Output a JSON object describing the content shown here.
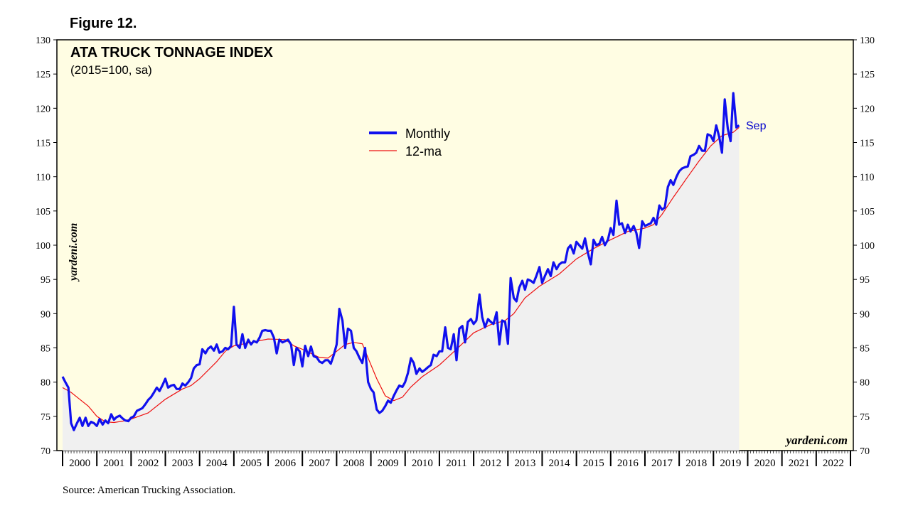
{
  "figure_label": "Figure 12.",
  "source": "Source: American Trucking Association.",
  "colors": {
    "plot_background": "#fffde3",
    "area_fill": "#f0f0f0",
    "monthly_line": "#1010ee",
    "ma_line": "#ee1111",
    "sep_label": "#0000cc"
  },
  "chart_data": {
    "type": "line",
    "title": "ATA TRUCK TONNAGE INDEX",
    "subtitle": "(2015=100, sa)",
    "watermark_side": "yardeni.com",
    "watermark_corner": "yardeni.com",
    "end_label": "Sep",
    "ylim": [
      70,
      130
    ],
    "yticks": [
      70,
      75,
      80,
      85,
      90,
      95,
      100,
      105,
      110,
      115,
      120,
      125,
      130
    ],
    "xlim": [
      2000,
      2023
    ],
    "year_labels": [
      "2000",
      "2001",
      "2002",
      "2003",
      "2004",
      "2005",
      "2006",
      "2007",
      "2008",
      "2009",
      "2010",
      "2011",
      "2012",
      "2013",
      "2014",
      "2015",
      "2016",
      "2017",
      "2018",
      "2019",
      "2020",
      "2021",
      "2022"
    ],
    "legend": {
      "position": "center-top",
      "entries": [
        "Monthly",
        "12-ma"
      ]
    },
    "series": [
      {
        "name": "Monthly",
        "points": [
          [
            2000.0,
            80.8
          ],
          [
            2000.08,
            80.0
          ],
          [
            2000.17,
            79.2
          ],
          [
            2000.25,
            74.0
          ],
          [
            2000.33,
            73.0
          ],
          [
            2000.42,
            74.0
          ],
          [
            2000.5,
            74.8
          ],
          [
            2000.58,
            73.6
          ],
          [
            2000.67,
            74.8
          ],
          [
            2000.75,
            73.6
          ],
          [
            2000.83,
            74.2
          ],
          [
            2000.92,
            74.0
          ],
          [
            2001.0,
            73.6
          ],
          [
            2001.08,
            74.6
          ],
          [
            2001.17,
            73.8
          ],
          [
            2001.25,
            74.4
          ],
          [
            2001.33,
            74.0
          ],
          [
            2001.42,
            75.3
          ],
          [
            2001.5,
            74.5
          ],
          [
            2001.58,
            74.9
          ],
          [
            2001.67,
            75.1
          ],
          [
            2001.75,
            74.7
          ],
          [
            2001.83,
            74.4
          ],
          [
            2001.92,
            74.3
          ],
          [
            2002.0,
            74.8
          ],
          [
            2002.08,
            75.0
          ],
          [
            2002.17,
            75.8
          ],
          [
            2002.25,
            76.0
          ],
          [
            2002.33,
            76.2
          ],
          [
            2002.42,
            76.8
          ],
          [
            2002.5,
            77.4
          ],
          [
            2002.58,
            77.8
          ],
          [
            2002.67,
            78.5
          ],
          [
            2002.75,
            79.2
          ],
          [
            2002.83,
            78.7
          ],
          [
            2002.92,
            79.6
          ],
          [
            2003.0,
            80.5
          ],
          [
            2003.08,
            79.2
          ],
          [
            2003.17,
            79.5
          ],
          [
            2003.25,
            79.6
          ],
          [
            2003.33,
            79.0
          ],
          [
            2003.42,
            79.0
          ],
          [
            2003.5,
            79.8
          ],
          [
            2003.58,
            79.5
          ],
          [
            2003.67,
            80.0
          ],
          [
            2003.75,
            80.6
          ],
          [
            2003.83,
            82.0
          ],
          [
            2003.92,
            82.5
          ],
          [
            2004.0,
            82.6
          ],
          [
            2004.08,
            84.8
          ],
          [
            2004.17,
            84.2
          ],
          [
            2004.25,
            84.9
          ],
          [
            2004.33,
            85.2
          ],
          [
            2004.42,
            84.6
          ],
          [
            2004.5,
            85.5
          ],
          [
            2004.58,
            84.3
          ],
          [
            2004.67,
            84.5
          ],
          [
            2004.75,
            85.0
          ],
          [
            2004.83,
            84.8
          ],
          [
            2004.92,
            85.3
          ],
          [
            2005.0,
            91.0
          ],
          [
            2005.08,
            85.5
          ],
          [
            2005.17,
            85.0
          ],
          [
            2005.25,
            87.0
          ],
          [
            2005.33,
            85.0
          ],
          [
            2005.42,
            86.2
          ],
          [
            2005.5,
            85.5
          ],
          [
            2005.58,
            86.0
          ],
          [
            2005.67,
            85.8
          ],
          [
            2005.75,
            86.5
          ],
          [
            2005.83,
            87.5
          ],
          [
            2005.92,
            87.6
          ],
          [
            2006.0,
            87.5
          ],
          [
            2006.08,
            87.5
          ],
          [
            2006.17,
            86.5
          ],
          [
            2006.25,
            84.2
          ],
          [
            2006.33,
            86.2
          ],
          [
            2006.42,
            85.8
          ],
          [
            2006.5,
            86.0
          ],
          [
            2006.58,
            86.2
          ],
          [
            2006.67,
            85.5
          ],
          [
            2006.75,
            82.5
          ],
          [
            2006.83,
            85.0
          ],
          [
            2006.92,
            84.5
          ],
          [
            2007.0,
            82.3
          ],
          [
            2007.08,
            85.3
          ],
          [
            2007.17,
            83.8
          ],
          [
            2007.25,
            85.2
          ],
          [
            2007.33,
            83.8
          ],
          [
            2007.42,
            83.6
          ],
          [
            2007.5,
            83.0
          ],
          [
            2007.58,
            82.8
          ],
          [
            2007.67,
            83.2
          ],
          [
            2007.75,
            83.2
          ],
          [
            2007.83,
            82.7
          ],
          [
            2007.92,
            84.0
          ],
          [
            2008.0,
            85.5
          ],
          [
            2008.08,
            90.7
          ],
          [
            2008.17,
            89.0
          ],
          [
            2008.25,
            85.0
          ],
          [
            2008.33,
            87.8
          ],
          [
            2008.42,
            87.5
          ],
          [
            2008.5,
            85.0
          ],
          [
            2008.58,
            84.5
          ],
          [
            2008.67,
            83.5
          ],
          [
            2008.75,
            82.8
          ],
          [
            2008.83,
            85.0
          ],
          [
            2008.92,
            80.0
          ],
          [
            2009.0,
            79.0
          ],
          [
            2009.08,
            78.5
          ],
          [
            2009.17,
            76.0
          ],
          [
            2009.25,
            75.5
          ],
          [
            2009.33,
            75.8
          ],
          [
            2009.42,
            76.5
          ],
          [
            2009.5,
            77.3
          ],
          [
            2009.58,
            77.0
          ],
          [
            2009.67,
            78.0
          ],
          [
            2009.75,
            78.8
          ],
          [
            2009.83,
            79.5
          ],
          [
            2009.92,
            79.3
          ],
          [
            2010.0,
            80.0
          ],
          [
            2010.08,
            81.3
          ],
          [
            2010.17,
            83.5
          ],
          [
            2010.25,
            82.8
          ],
          [
            2010.33,
            81.2
          ],
          [
            2010.42,
            82.0
          ],
          [
            2010.5,
            81.5
          ],
          [
            2010.58,
            81.8
          ],
          [
            2010.67,
            82.2
          ],
          [
            2010.75,
            82.5
          ],
          [
            2010.83,
            84.0
          ],
          [
            2010.92,
            83.8
          ],
          [
            2011.0,
            84.5
          ],
          [
            2011.08,
            84.5
          ],
          [
            2011.17,
            88.0
          ],
          [
            2011.25,
            85.0
          ],
          [
            2011.33,
            84.8
          ],
          [
            2011.42,
            87.0
          ],
          [
            2011.5,
            83.2
          ],
          [
            2011.58,
            87.8
          ],
          [
            2011.67,
            88.2
          ],
          [
            2011.75,
            85.8
          ],
          [
            2011.83,
            88.8
          ],
          [
            2011.92,
            89.2
          ],
          [
            2012.0,
            88.5
          ],
          [
            2012.08,
            89.0
          ],
          [
            2012.17,
            92.8
          ],
          [
            2012.25,
            89.5
          ],
          [
            2012.33,
            88.0
          ],
          [
            2012.42,
            89.2
          ],
          [
            2012.5,
            88.8
          ],
          [
            2012.58,
            88.5
          ],
          [
            2012.67,
            90.2
          ],
          [
            2012.75,
            85.5
          ],
          [
            2012.83,
            89.0
          ],
          [
            2012.92,
            88.8
          ],
          [
            2013.0,
            85.6
          ],
          [
            2013.08,
            95.2
          ],
          [
            2013.17,
            92.3
          ],
          [
            2013.25,
            91.8
          ],
          [
            2013.33,
            93.8
          ],
          [
            2013.42,
            94.8
          ],
          [
            2013.5,
            93.5
          ],
          [
            2013.58,
            95.0
          ],
          [
            2013.67,
            94.8
          ],
          [
            2013.75,
            94.5
          ],
          [
            2013.83,
            95.5
          ],
          [
            2013.92,
            96.8
          ],
          [
            2014.0,
            94.5
          ],
          [
            2014.08,
            95.5
          ],
          [
            2014.17,
            96.5
          ],
          [
            2014.25,
            95.5
          ],
          [
            2014.33,
            97.5
          ],
          [
            2014.42,
            96.5
          ],
          [
            2014.5,
            97.2
          ],
          [
            2014.58,
            97.5
          ],
          [
            2014.67,
            97.5
          ],
          [
            2014.75,
            99.5
          ],
          [
            2014.83,
            100.0
          ],
          [
            2014.92,
            98.8
          ],
          [
            2015.0,
            100.5
          ],
          [
            2015.08,
            100.0
          ],
          [
            2015.17,
            99.5
          ],
          [
            2015.25,
            101.0
          ],
          [
            2015.33,
            99.0
          ],
          [
            2015.42,
            97.2
          ],
          [
            2015.5,
            100.8
          ],
          [
            2015.58,
            100.0
          ],
          [
            2015.67,
            100.2
          ],
          [
            2015.75,
            101.2
          ],
          [
            2015.83,
            100.0
          ],
          [
            2015.92,
            100.8
          ],
          [
            2016.0,
            102.5
          ],
          [
            2016.08,
            101.5
          ],
          [
            2016.17,
            106.5
          ],
          [
            2016.25,
            103.0
          ],
          [
            2016.33,
            103.2
          ],
          [
            2016.42,
            101.8
          ],
          [
            2016.5,
            103.0
          ],
          [
            2016.58,
            102.0
          ],
          [
            2016.67,
            102.8
          ],
          [
            2016.75,
            101.8
          ],
          [
            2016.83,
            99.6
          ],
          [
            2016.92,
            103.5
          ],
          [
            2017.0,
            102.8
          ],
          [
            2017.08,
            103.0
          ],
          [
            2017.17,
            103.2
          ],
          [
            2017.25,
            104.0
          ],
          [
            2017.33,
            103.0
          ],
          [
            2017.42,
            105.8
          ],
          [
            2017.5,
            105.2
          ],
          [
            2017.58,
            105.5
          ],
          [
            2017.67,
            108.5
          ],
          [
            2017.75,
            109.5
          ],
          [
            2017.83,
            108.8
          ],
          [
            2017.92,
            110.0
          ],
          [
            2018.0,
            110.8
          ],
          [
            2018.08,
            111.2
          ],
          [
            2018.17,
            111.4
          ],
          [
            2018.25,
            111.5
          ],
          [
            2018.33,
            113.0
          ],
          [
            2018.42,
            113.2
          ],
          [
            2018.5,
            113.5
          ],
          [
            2018.58,
            114.5
          ],
          [
            2018.67,
            113.8
          ],
          [
            2018.75,
            113.8
          ],
          [
            2018.83,
            116.2
          ],
          [
            2018.92,
            116.0
          ],
          [
            2019.0,
            115.2
          ],
          [
            2019.08,
            117.5
          ],
          [
            2019.17,
            115.8
          ],
          [
            2019.25,
            113.5
          ],
          [
            2019.33,
            121.3
          ],
          [
            2019.42,
            117.0
          ],
          [
            2019.5,
            115.2
          ],
          [
            2019.58,
            122.2
          ],
          [
            2019.67,
            117.2
          ],
          [
            2019.75,
            117.5
          ]
        ]
      },
      {
        "name": "12-ma",
        "points": [
          [
            2000.0,
            79.2
          ],
          [
            2000.25,
            78.5
          ],
          [
            2000.5,
            77.5
          ],
          [
            2000.75,
            76.5
          ],
          [
            2001.0,
            75.0
          ],
          [
            2001.25,
            74.2
          ],
          [
            2001.5,
            74.1
          ],
          [
            2001.75,
            74.3
          ],
          [
            2002.0,
            74.6
          ],
          [
            2002.5,
            75.5
          ],
          [
            2003.0,
            77.5
          ],
          [
            2003.5,
            79.0
          ],
          [
            2003.75,
            79.5
          ],
          [
            2004.0,
            80.5
          ],
          [
            2004.5,
            83.0
          ],
          [
            2004.75,
            84.5
          ],
          [
            2005.0,
            85.3
          ],
          [
            2005.5,
            85.8
          ],
          [
            2006.0,
            86.3
          ],
          [
            2006.5,
            86.2
          ],
          [
            2006.75,
            85.3
          ],
          [
            2007.0,
            84.8
          ],
          [
            2007.5,
            83.6
          ],
          [
            2007.75,
            83.5
          ],
          [
            2008.0,
            84.5
          ],
          [
            2008.25,
            85.5
          ],
          [
            2008.5,
            85.8
          ],
          [
            2008.75,
            85.6
          ],
          [
            2008.92,
            83.5
          ],
          [
            2009.17,
            80.5
          ],
          [
            2009.42,
            78.0
          ],
          [
            2009.67,
            77.3
          ],
          [
            2009.92,
            77.8
          ],
          [
            2010.17,
            79.3
          ],
          [
            2010.5,
            80.8
          ],
          [
            2011.0,
            82.5
          ],
          [
            2011.5,
            84.8
          ],
          [
            2012.0,
            87.2
          ],
          [
            2012.5,
            88.4
          ],
          [
            2012.92,
            89.0
          ],
          [
            2013.17,
            90.0
          ],
          [
            2013.5,
            92.3
          ],
          [
            2013.92,
            94.0
          ],
          [
            2014.5,
            95.8
          ],
          [
            2015.0,
            98.0
          ],
          [
            2015.5,
            99.5
          ],
          [
            2016.0,
            100.8
          ],
          [
            2016.5,
            102.0
          ],
          [
            2017.0,
            102.5
          ],
          [
            2017.25,
            103.0
          ],
          [
            2017.5,
            104.5
          ],
          [
            2017.83,
            107.0
          ],
          [
            2018.25,
            110.0
          ],
          [
            2018.58,
            112.3
          ],
          [
            2018.92,
            114.5
          ],
          [
            2019.25,
            116.0
          ],
          [
            2019.58,
            116.5
          ],
          [
            2019.75,
            117.2
          ]
        ]
      }
    ]
  }
}
